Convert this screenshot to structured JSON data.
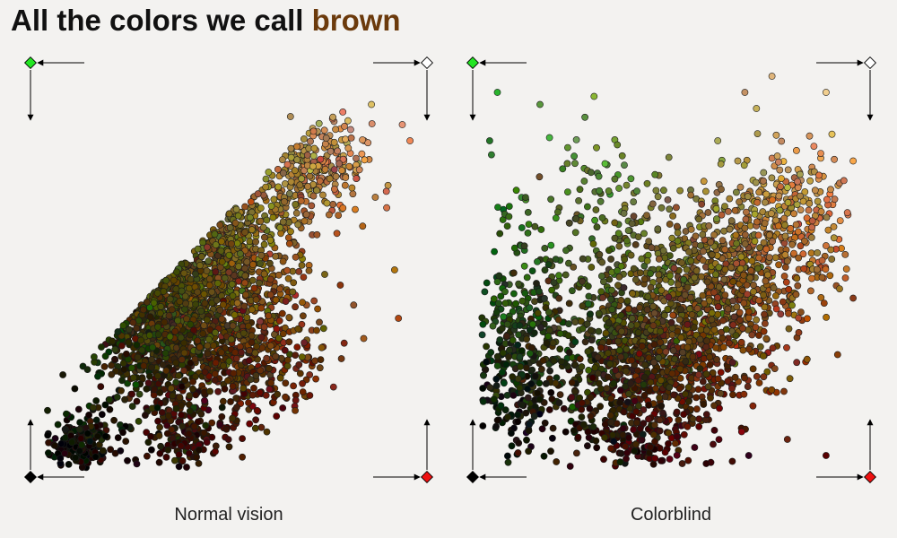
{
  "title": {
    "prefix": "All the colors we call ",
    "highlight": "brown"
  },
  "colors": {
    "background": "#f3f2f0",
    "accent": "#6b3a0c",
    "corner_top_left": "#22e622",
    "corner_top_right": "#ffffff",
    "corner_bottom_left": "#000000",
    "corner_bottom_right": "#ee1111"
  },
  "chart_data": [
    {
      "type": "scatter",
      "title": "Normal vision",
      "point_count": 2600,
      "corners": {
        "top_left": "green-corner-icon",
        "top_right": "white-corner-icon",
        "bottom_left": "black-corner-icon",
        "bottom_right": "red-corner-icon"
      },
      "xlim": [
        0,
        1
      ],
      "ylim": [
        0,
        1
      ],
      "xlabel": "",
      "ylabel": "",
      "grid": false,
      "clusters": [
        {
          "x": 0.12,
          "y": 0.07,
          "sx": 0.04,
          "sy": 0.04,
          "w": 0.06
        },
        {
          "x": 0.35,
          "y": 0.38,
          "sx": 0.1,
          "sy": 0.11,
          "w": 0.5
        },
        {
          "x": 0.5,
          "y": 0.55,
          "sx": 0.09,
          "sy": 0.1,
          "w": 0.22
        },
        {
          "x": 0.72,
          "y": 0.76,
          "sx": 0.07,
          "sy": 0.07,
          "w": 0.1
        },
        {
          "x": 0.58,
          "y": 0.28,
          "sx": 0.09,
          "sy": 0.08,
          "w": 0.1
        },
        {
          "x": 0.38,
          "y": 0.08,
          "sx": 0.06,
          "sy": 0.04,
          "w": 0.04
        }
      ],
      "outliers": [
        [
          0.07,
          0.24
        ],
        [
          0.66,
          0.88
        ],
        [
          0.87,
          0.91
        ],
        [
          0.95,
          0.86
        ],
        [
          0.93,
          0.5
        ],
        [
          0.94,
          0.38
        ],
        [
          0.88,
          0.68
        ],
        [
          0.85,
          0.33
        ],
        [
          0.97,
          0.82
        ],
        [
          0.52,
          0.65
        ],
        [
          0.24,
          0.32
        ]
      ]
    },
    {
      "type": "scatter",
      "title": "Colorblind",
      "point_count": 2600,
      "corners": {
        "top_left": "green-corner-icon",
        "top_right": "white-corner-icon",
        "bottom_left": "black-corner-icon",
        "bottom_right": "red-corner-icon"
      },
      "xlim": [
        0,
        1
      ],
      "ylim": [
        0,
        1
      ],
      "xlabel": "",
      "ylabel": "",
      "grid": false,
      "clusters": [
        {
          "x": 0.1,
          "y": 0.3,
          "sx": 0.07,
          "sy": 0.12,
          "w": 0.14
        },
        {
          "x": 0.45,
          "y": 0.3,
          "sx": 0.13,
          "sy": 0.1,
          "w": 0.38
        },
        {
          "x": 0.62,
          "y": 0.48,
          "sx": 0.13,
          "sy": 0.11,
          "w": 0.26
        },
        {
          "x": 0.8,
          "y": 0.62,
          "sx": 0.09,
          "sy": 0.09,
          "w": 0.1
        },
        {
          "x": 0.38,
          "y": 0.1,
          "sx": 0.1,
          "sy": 0.05,
          "w": 0.08
        },
        {
          "x": 0.3,
          "y": 0.66,
          "sx": 0.12,
          "sy": 0.1,
          "w": 0.04
        }
      ],
      "outliers": [
        [
          0.05,
          0.94
        ],
        [
          0.16,
          0.91
        ],
        [
          0.03,
          0.82
        ],
        [
          0.3,
          0.93
        ],
        [
          0.36,
          0.81
        ],
        [
          0.76,
          0.98
        ],
        [
          0.9,
          0.94
        ],
        [
          0.72,
          0.9
        ],
        [
          0.97,
          0.77
        ],
        [
          0.97,
          0.43
        ],
        [
          0.93,
          0.29
        ],
        [
          0.9,
          0.04
        ],
        [
          0.8,
          0.08
        ],
        [
          0.7,
          0.04
        ],
        [
          0.59,
          0.02
        ],
        [
          0.56,
          0.06
        ],
        [
          0.69,
          0.94
        ],
        [
          0.62,
          0.82
        ],
        [
          0.9,
          0.56
        ],
        [
          0.95,
          0.48
        ]
      ]
    }
  ]
}
